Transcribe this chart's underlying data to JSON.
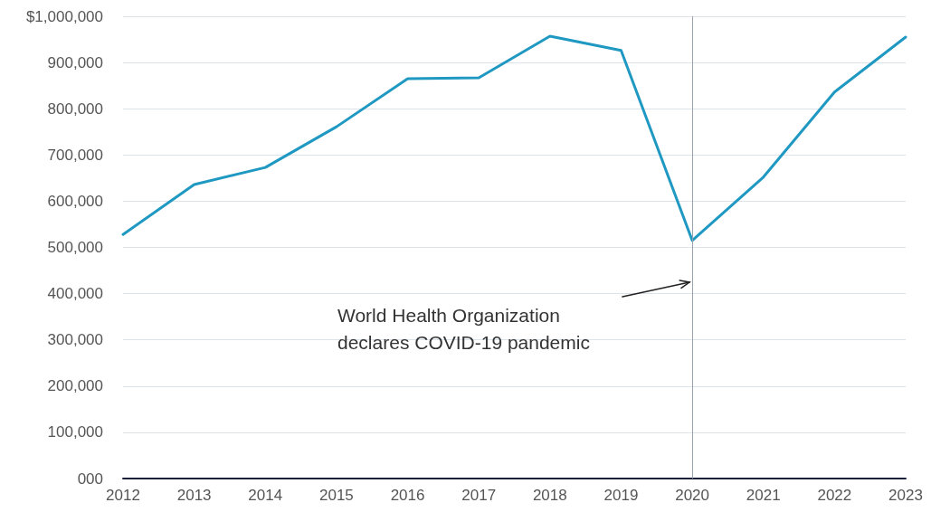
{
  "chart_data": {
    "type": "line",
    "categories": [
      "2012",
      "2013",
      "2014",
      "2015",
      "2016",
      "2017",
      "2018",
      "2019",
      "2020",
      "2021",
      "2022",
      "2023"
    ],
    "series": [
      {
        "color": "#1f98c2",
        "values": [
          528000,
          636000,
          673000,
          761000,
          865000,
          867000,
          957000,
          926000,
          515000,
          652000,
          836000,
          955000
        ]
      }
    ],
    "ylim": [
      0,
      1000000
    ],
    "yticks": [
      {
        "value": 0,
        "label": "000"
      },
      {
        "value": 100000,
        "label": "100,000"
      },
      {
        "value": 200000,
        "label": "200,000"
      },
      {
        "value": 300000,
        "label": "300,000"
      },
      {
        "value": 400000,
        "label": "400,000"
      },
      {
        "value": 500000,
        "label": "500,000"
      },
      {
        "value": 600000,
        "label": "600,000"
      },
      {
        "value": 700000,
        "label": "700,000"
      },
      {
        "value": 800000,
        "label": "800,000"
      },
      {
        "value": 900000,
        "label": "900,000"
      },
      {
        "value": 1000000,
        "label": "$1,000,000"
      }
    ],
    "grid": "y",
    "marker": "none",
    "line_style": "solid",
    "ref_lines": [
      {
        "axis": "x",
        "value": "2020",
        "color": "#9aa3ad"
      }
    ],
    "annotations": [
      "World Health Organization\ndeclares COVID-19 pandemic"
    ]
  }
}
